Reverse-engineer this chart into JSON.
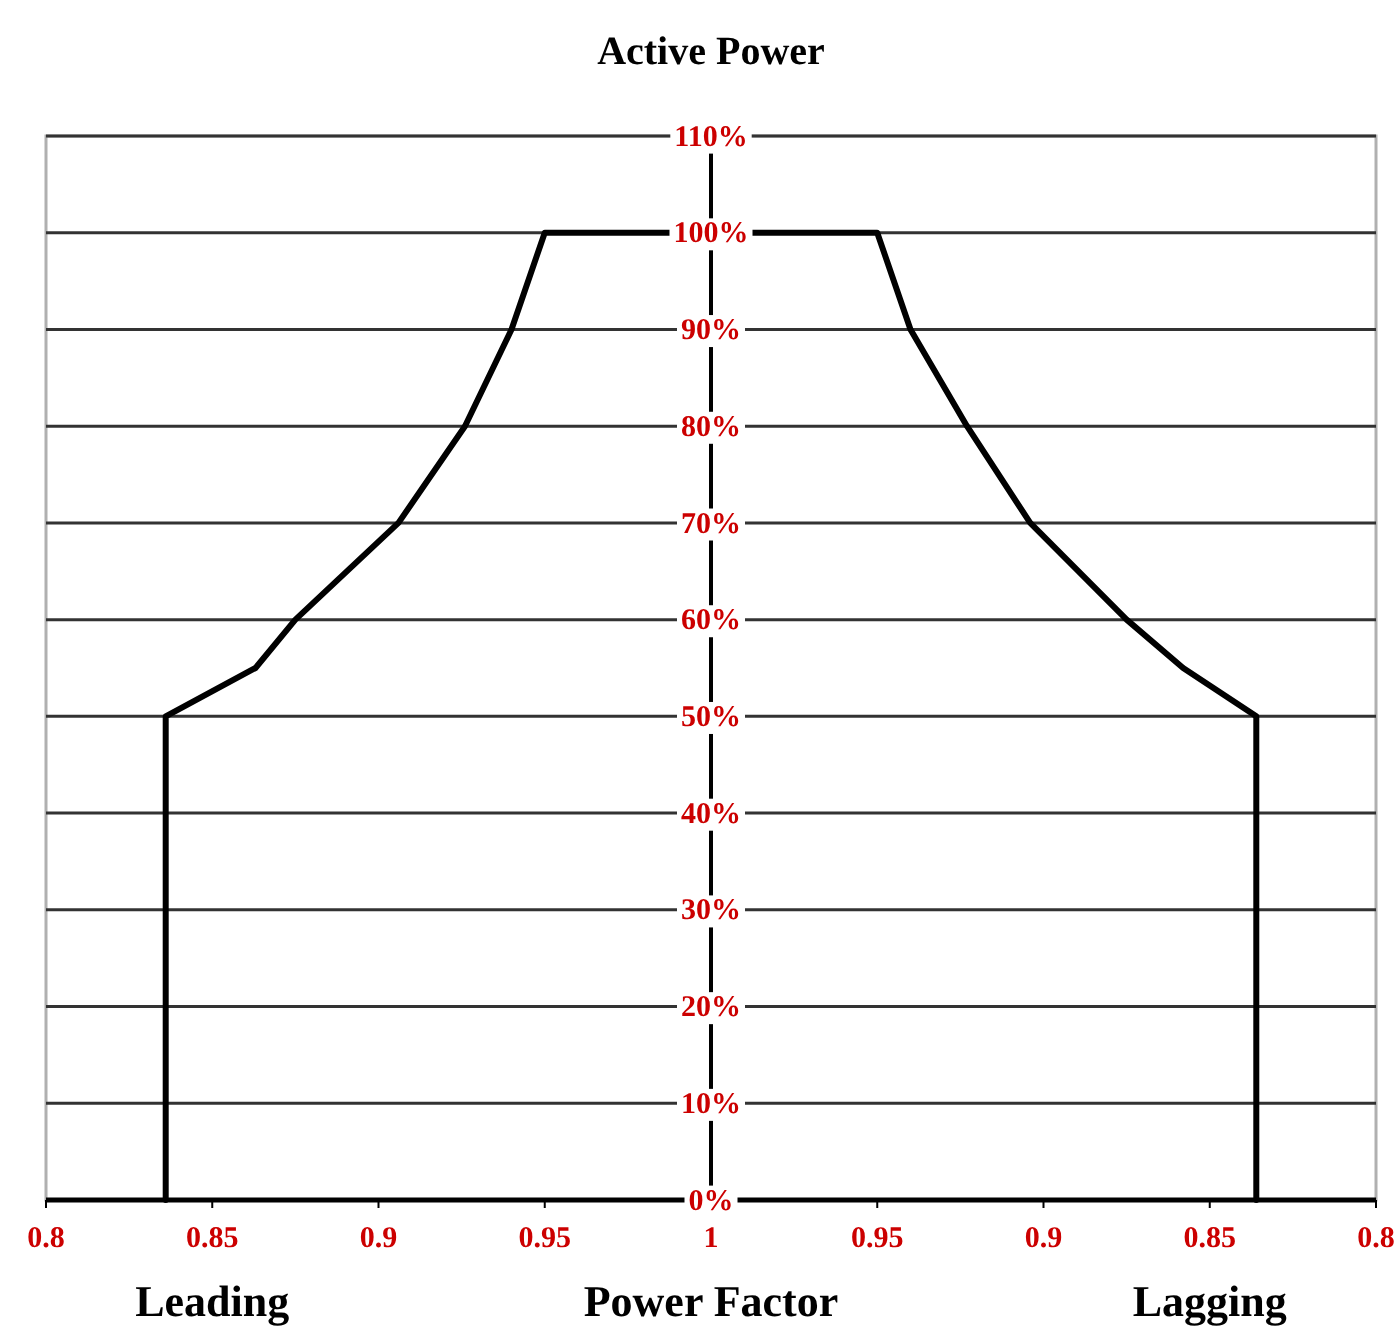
{
  "chart_data": [
    {
      "type": "line",
      "title": "Active Power",
      "xlabel": "Power Factor",
      "annotations": [
        "Leading"
      ],
      "series": [
        {
          "color": "#000000",
          "x": [
            0.836,
            0.836,
            0.863,
            0.875,
            0.906,
            0.926,
            0.94,
            0.95,
            1
          ],
          "values": [
            0,
            50,
            55,
            60,
            70,
            80,
            90,
            100,
            100
          ]
        }
      ],
      "xlim": [
        0.8,
        1
      ],
      "xticks": [
        0.8,
        0.85,
        0.9,
        0.95,
        1
      ],
      "ylim": [
        0,
        110
      ],
      "yticks": [
        {
          "value": 0,
          "label": "0%"
        },
        {
          "value": 10,
          "label": "10%"
        },
        {
          "value": 20,
          "label": "20%"
        },
        {
          "value": 30,
          "label": "30%"
        },
        {
          "value": 40,
          "label": "40%"
        },
        {
          "value": 50,
          "label": "50%"
        },
        {
          "value": 60,
          "label": "60%"
        },
        {
          "value": 70,
          "label": "70%"
        },
        {
          "value": 80,
          "label": "80%"
        },
        {
          "value": 90,
          "label": "90%"
        },
        {
          "value": 100,
          "label": "100%"
        },
        {
          "value": 110,
          "label": "110%"
        }
      ],
      "grid": "y",
      "marker": "none",
      "line_style": "solid"
    },
    {
      "type": "line",
      "annotations": [
        "Lagging"
      ],
      "series": [
        {
          "color": "#000000",
          "x": [
            1,
            0.95,
            0.94,
            0.923,
            0.904,
            0.875,
            0.858,
            0.836,
            0.836
          ],
          "values": [
            100,
            100,
            90,
            80,
            70,
            60,
            55,
            50,
            0
          ]
        }
      ],
      "xlim": [
        1,
        0.8
      ],
      "xticks": [
        0.95,
        0.9,
        0.85,
        0.8
      ],
      "ylim": [
        0,
        110
      ],
      "yticks": [
        0,
        10,
        20,
        30,
        40,
        50,
        60,
        70,
        80,
        90,
        100,
        110
      ],
      "tick_labels": "x",
      "grid": "y",
      "marker": "none",
      "line_style": "solid"
    }
  ]
}
